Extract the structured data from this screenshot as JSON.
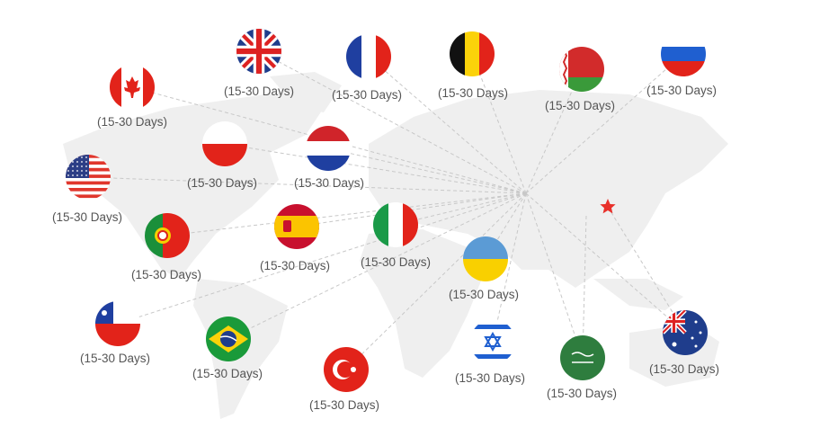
{
  "hub_star_color": "#e8302a",
  "line_color": "#c8c8c8",
  "map_color": "#efefef",
  "destinations": [
    {
      "flag": "uk-flag-icon",
      "label": "(15-30 Days)"
    },
    {
      "flag": "france-flag-icon",
      "label": "(15-30 Days)"
    },
    {
      "flag": "belgium-flag-icon",
      "label": "(15-30 Days)"
    },
    {
      "flag": "belarus-flag-icon",
      "label": "(15-30 Days)"
    },
    {
      "flag": "russia-flag-icon",
      "label": "(15-30 Days)"
    },
    {
      "flag": "canada-flag-icon",
      "label": "(15-30 Days)"
    },
    {
      "flag": "poland-flag-icon",
      "label": "(15-30 Days)"
    },
    {
      "flag": "netherlands-flag-icon",
      "label": "(15-30 Days)"
    },
    {
      "flag": "usa-flag-icon",
      "label": "(15-30 Days)"
    },
    {
      "flag": "portugal-flag-icon",
      "label": "(15-30 Days)"
    },
    {
      "flag": "spain-flag-icon",
      "label": "(15-30 Days)"
    },
    {
      "flag": "italy-flag-icon",
      "label": "(15-30 Days)"
    },
    {
      "flag": "ukraine-flag-icon",
      "label": "(15-30 Days)"
    },
    {
      "flag": "chile-flag-icon",
      "label": "(15-30 Days)"
    },
    {
      "flag": "brazil-flag-icon",
      "label": "(15-30 Days)"
    },
    {
      "flag": "turkey-flag-icon",
      "label": "(15-30 Days)"
    },
    {
      "flag": "israel-flag-icon",
      "label": "(15-30 Days)"
    },
    {
      "flag": "saudi-arabia-flag-icon",
      "label": "(15-30 Days)"
    },
    {
      "flag": "australia-flag-icon",
      "label": "(15-30 Days)"
    }
  ]
}
